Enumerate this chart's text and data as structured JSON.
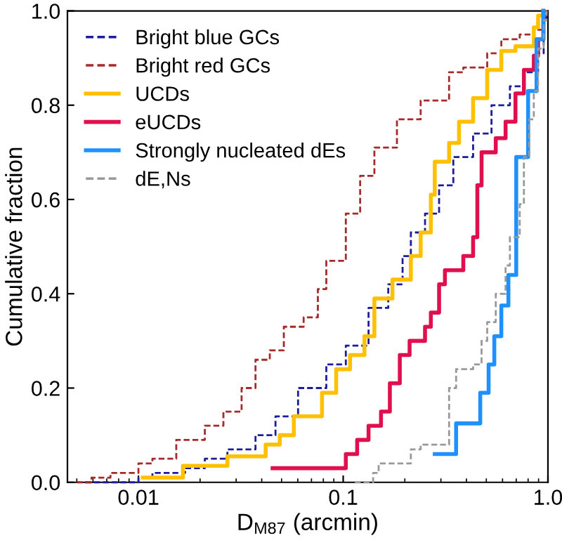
{
  "chart_data": {
    "type": "step",
    "xlabel": "D$_{M87}$ (arcmin)",
    "ylabel": "Cumulative fraction",
    "log": "x",
    "xlim": [
      0.0045,
      1.0
    ],
    "xticks": [
      0.01,
      0.1,
      {
        "value": 1.0,
        "label": "1.0"
      }
    ],
    "ylim": [
      0,
      1.0
    ],
    "yticks": [
      {
        "value": 0,
        "label": "0.0"
      },
      0.2,
      0.4,
      0.6,
      0.8,
      {
        "value": 1.0,
        "label": "1.0"
      }
    ],
    "grid": false,
    "legend": "top left",
    "series": [
      {
        "name": "Bright blue GCs",
        "color": "#1c1c9c",
        "line_style": "dashed",
        "x": [
          0.0055,
          0.01,
          0.0117,
          0.0169,
          0.0211,
          0.0272,
          0.0373,
          0.0467,
          0.0602,
          0.0827,
          0.103,
          0.133,
          0.166,
          0.195,
          0.214,
          0.251,
          0.294,
          0.345,
          0.431,
          0.53,
          0.652,
          0.763,
          0.895,
          0.953,
          0.985
        ],
        "values": [
          0,
          0.01,
          0.02,
          0.03,
          0.05,
          0.07,
          0.1,
          0.14,
          0.2,
          0.25,
          0.29,
          0.37,
          0.42,
          0.48,
          0.53,
          0.57,
          0.63,
          0.69,
          0.74,
          0.8,
          0.84,
          0.87,
          0.91,
          0.985,
          1.0
        ]
      },
      {
        "name": "Bright red GCs",
        "color": "#a52a2a",
        "line_style": "dashed",
        "x": [
          0.005,
          0.0059,
          0.0073,
          0.01,
          0.0117,
          0.0153,
          0.0211,
          0.026,
          0.0319,
          0.0373,
          0.0438,
          0.0513,
          0.0641,
          0.0752,
          0.0827,
          0.103,
          0.121,
          0.142,
          0.183,
          0.239,
          0.329,
          0.386,
          0.505,
          0.592,
          0.728,
          0.853,
          0.953,
          0.985
        ],
        "values": [
          0,
          0.01,
          0.02,
          0.04,
          0.05,
          0.09,
          0.12,
          0.15,
          0.2,
          0.26,
          0.28,
          0.33,
          0.35,
          0.41,
          0.47,
          0.57,
          0.65,
          0.71,
          0.77,
          0.81,
          0.87,
          0.88,
          0.91,
          0.94,
          0.95,
          0.96,
          0.99,
          1.0
        ]
      },
      {
        "name": "UCDs",
        "color": "#ffc000",
        "line_style": "solid",
        "x": [
          0.0105,
          0.0165,
          0.0272,
          0.0418,
          0.049,
          0.0574,
          0.0788,
          0.0924,
          0.108,
          0.127,
          0.142,
          0.174,
          0.214,
          0.239,
          0.268,
          0.28,
          0.329,
          0.368,
          0.431,
          0.505,
          0.592,
          0.694,
          0.853,
          0.895,
          0.95
        ],
        "values": [
          0.01,
          0.035,
          0.055,
          0.08,
          0.1,
          0.14,
          0.19,
          0.24,
          0.27,
          0.31,
          0.39,
          0.43,
          0.48,
          0.53,
          0.61,
          0.68,
          0.72,
          0.765,
          0.815,
          0.875,
          0.915,
          0.925,
          0.965,
          0.99,
          1.0
        ]
      },
      {
        "name": "eUCDs",
        "color": "#e0104f",
        "line_style": "solid",
        "x": [
          0.0452,
          0.103,
          0.117,
          0.133,
          0.153,
          0.169,
          0.189,
          0.211,
          0.251,
          0.268,
          0.294,
          0.314,
          0.386,
          0.431,
          0.452,
          0.474,
          0.556,
          0.621,
          0.694,
          0.763,
          0.853,
          0.895,
          0.95
        ],
        "values": [
          0.03,
          0.06,
          0.09,
          0.12,
          0.15,
          0.21,
          0.27,
          0.3,
          0.33,
          0.36,
          0.42,
          0.45,
          0.48,
          0.52,
          0.63,
          0.7,
          0.73,
          0.765,
          0.825,
          0.875,
          0.905,
          0.94,
          1.0
        ]
      },
      {
        "name": "Strongly nucleated dEs",
        "color": "#1e90ff",
        "line_style": "solid",
        "x": [
          0.28,
          0.356,
          0.467,
          0.513,
          0.547,
          0.592,
          0.641,
          0.7,
          0.8,
          0.88,
          0.95
        ],
        "values": [
          0.06,
          0.125,
          0.19,
          0.25,
          0.31,
          0.375,
          0.44,
          0.69,
          0.83,
          0.94,
          1.0
        ]
      },
      {
        "name": "dE,Ns",
        "color": "#999999",
        "line_style": "dashed",
        "x": [
          0.114,
          0.14,
          0.149,
          0.214,
          0.239,
          0.329,
          0.356,
          0.431,
          0.474,
          0.505,
          0.556,
          0.621,
          0.652,
          0.728,
          0.763,
          0.81,
          0.853,
          0.895,
          0.953,
          0.985
        ],
        "values": [
          0,
          0.02,
          0.04,
          0.07,
          0.08,
          0.2,
          0.24,
          0.25,
          0.3,
          0.34,
          0.4,
          0.46,
          0.52,
          0.59,
          0.69,
          0.77,
          0.83,
          0.92,
          0.98,
          1.0
        ]
      }
    ]
  }
}
